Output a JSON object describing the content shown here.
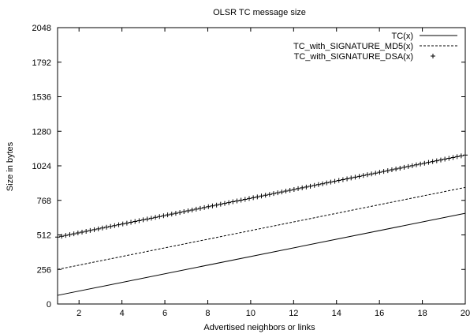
{
  "chart_data": {
    "type": "line",
    "title": "OLSR TC message size",
    "xlabel": "Advertised neighbors or links",
    "ylabel": "Size in bytes",
    "xlim": [
      1,
      20
    ],
    "ylim": [
      0,
      2048
    ],
    "x_ticks": [
      2,
      4,
      6,
      8,
      10,
      12,
      14,
      16,
      18,
      20
    ],
    "x_tick_labels": [
      "2",
      "4",
      "6",
      "8",
      "10",
      "12",
      "14",
      "16",
      "18",
      "20"
    ],
    "y_ticks": [
      0,
      256,
      512,
      768,
      1024,
      1280,
      1536,
      1792,
      2048
    ],
    "y_tick_labels": [
      "0",
      "256",
      "512",
      "768",
      "1024",
      "1280",
      "1536",
      "1792",
      "2048"
    ],
    "grid": false,
    "legend_position": "top-right",
    "series": [
      {
        "name": "TC(x)",
        "style": "solid",
        "x": [
          1,
          20
        ],
        "y": [
          64,
          672
        ]
      },
      {
        "name": "TC_with_SIGNATURE_MD5(x)",
        "style": "dashed",
        "x": [
          1,
          20
        ],
        "y": [
          256,
          864
        ]
      },
      {
        "name": "TC_with_SIGNATURE_DSA(x)",
        "style": "plus-markers",
        "x": [
          1,
          20
        ],
        "y": [
          496,
          1104
        ]
      }
    ]
  }
}
